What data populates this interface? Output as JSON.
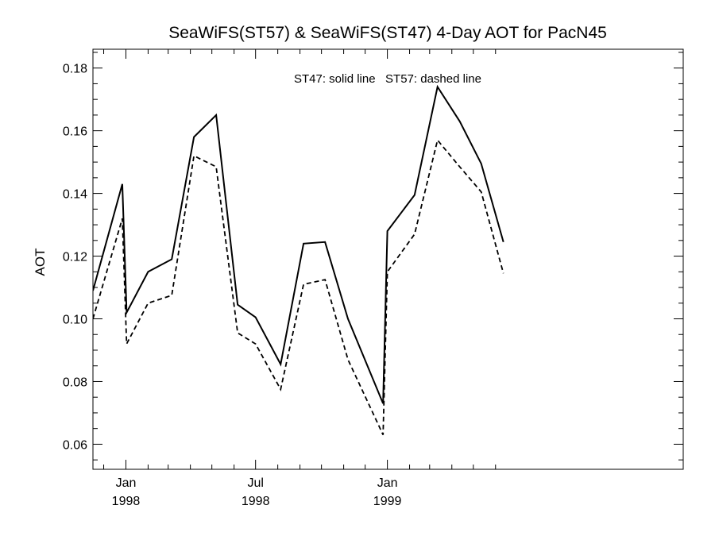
{
  "chart_data": {
    "type": "line",
    "title": "SeaWiFS(ST57) & SeaWiFS(ST47) 4-Day AOT for PacN45",
    "xlabel": "",
    "ylabel": "AOT",
    "annotation": "ST47: solid line   ST57: dashed line",
    "ylim": [
      0.052,
      0.186
    ],
    "xlim": [
      "1997-11-16",
      "2000-02-18"
    ],
    "x_ticks": [
      {
        "date": "1998-01-01",
        "line1": "Jan",
        "line2": "1998"
      },
      {
        "date": "1998-07-01",
        "line1": "Jul",
        "line2": "1998"
      },
      {
        "date": "1999-01-01",
        "line1": "Jan",
        "line2": "1999"
      }
    ],
    "x_minor_ticks": [
      "1997-12-01",
      "1998-02-01",
      "1998-03-01",
      "1998-04-01",
      "1998-05-01",
      "1998-06-01",
      "1998-08-01",
      "1998-09-01",
      "1998-10-01",
      "1998-11-01",
      "1998-12-01",
      "1999-02-01",
      "1999-03-01",
      "1999-04-01",
      "1999-05-01",
      "1999-06-01"
    ],
    "y_ticks": [
      0.06,
      0.08,
      0.1,
      0.12,
      0.14,
      0.16,
      0.18
    ],
    "y_tick_labels": [
      "0.06",
      "0.08",
      "0.10",
      "0.12",
      "0.14",
      "0.16",
      "0.18"
    ],
    "y_minor_ticks": [
      0.055,
      0.065,
      0.07,
      0.075,
      0.085,
      0.09,
      0.095,
      0.105,
      0.11,
      0.115,
      0.125,
      0.13,
      0.135,
      0.145,
      0.15,
      0.155,
      0.165,
      0.17,
      0.175,
      0.185
    ],
    "series": [
      {
        "name": "ST47",
        "style": "solid",
        "color": "#000000",
        "x": [
          "1997-11-16",
          "1997-12-27",
          "1998-01-02",
          "1998-02-01",
          "1998-03-06",
          "1998-04-06",
          "1998-05-07",
          "1998-06-06",
          "1998-07-01",
          "1998-08-05",
          "1998-09-06",
          "1998-10-06",
          "1998-11-07",
          "1998-12-26",
          "1999-01-01",
          "1999-02-08",
          "1999-03-12",
          "1999-04-12",
          "1999-05-12",
          "1999-06-12"
        ],
        "values": [
          0.109,
          0.143,
          0.102,
          0.115,
          0.119,
          0.158,
          0.165,
          0.1045,
          0.1005,
          0.0855,
          0.124,
          0.1245,
          0.1,
          0.073,
          0.128,
          0.1395,
          0.174,
          0.163,
          0.1495,
          0.1245
        ]
      },
      {
        "name": "ST57",
        "style": "dashed",
        "color": "#000000",
        "x": [
          "1997-11-16",
          "1997-12-27",
          "1998-01-02",
          "1998-02-01",
          "1998-03-06",
          "1998-04-06",
          "1998-05-07",
          "1998-06-06",
          "1998-07-01",
          "1998-08-05",
          "1998-09-06",
          "1998-10-06",
          "1998-11-07",
          "1998-12-26",
          "1999-01-01",
          "1999-02-08",
          "1999-03-12",
          "1999-04-12",
          "1999-05-12",
          "1999-06-12"
        ],
        "values": [
          0.1,
          0.132,
          0.092,
          0.105,
          0.1075,
          0.152,
          0.1485,
          0.0955,
          0.092,
          0.0775,
          0.111,
          0.1125,
          0.087,
          0.063,
          0.115,
          0.127,
          0.157,
          0.1485,
          0.1405,
          0.1145
        ]
      }
    ]
  }
}
